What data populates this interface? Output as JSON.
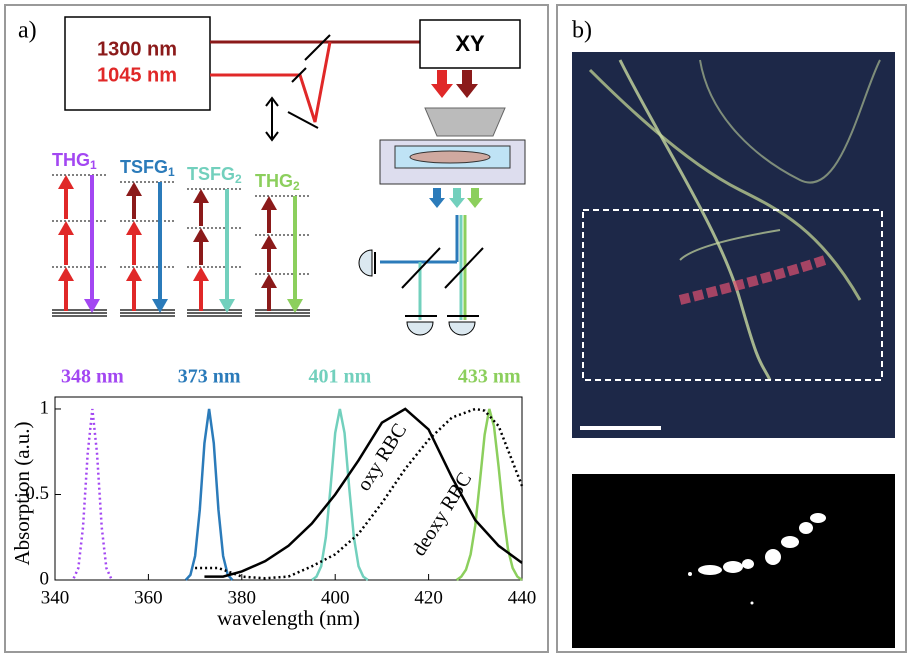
{
  "panel_labels": [
    "a)",
    "b)"
  ],
  "lasers": [
    "1300 nm",
    "1045 nm"
  ],
  "stage_label": "XY",
  "processes": [
    {
      "name": "THG",
      "sub": "1"
    },
    {
      "name": "TSFG",
      "sub": "1"
    },
    {
      "name": "TSFG",
      "sub": "2"
    },
    {
      "name": "THG",
      "sub": "2"
    }
  ],
  "chart_data": {
    "type": "line",
    "xlabel": "wavelength (nm)",
    "ylabel": "Absorption (a.u.)",
    "xlim": [
      340,
      440
    ],
    "ylim": [
      0,
      1.07
    ],
    "xticks": [
      340,
      360,
      380,
      400,
      420,
      440
    ],
    "yticks": [
      0,
      0.5,
      1
    ],
    "series": [
      {
        "name": "348 nm",
        "color": "#a347f2",
        "dashed": true,
        "x": [
          344,
          345,
          346,
          347,
          348,
          349,
          350,
          351,
          352
        ],
        "values": [
          0.01,
          0.07,
          0.31,
          0.74,
          1,
          0.74,
          0.31,
          0.07,
          0.01
        ]
      },
      {
        "name": "373 nm",
        "color": "#2b7bba",
        "dashed": false,
        "x": [
          368,
          369,
          370,
          371,
          372,
          373,
          374,
          375,
          376,
          377,
          378
        ],
        "values": [
          0,
          0.03,
          0.14,
          0.41,
          0.8,
          1,
          0.8,
          0.41,
          0.14,
          0.03,
          0
        ]
      },
      {
        "name": "401 nm",
        "color": "#72d0bd",
        "dashed": false,
        "x": [
          395,
          396,
          397,
          398,
          399,
          400,
          401,
          402,
          403,
          404,
          405,
          406,
          407
        ],
        "values": [
          0,
          0.02,
          0.08,
          0.25,
          0.54,
          0.86,
          1,
          0.86,
          0.54,
          0.25,
          0.08,
          0.02,
          0
        ]
      },
      {
        "name": "433 nm",
        "color": "#8ccf5d",
        "dashed": false,
        "x": [
          426,
          427,
          428,
          429,
          430,
          431,
          432,
          433,
          434,
          435,
          436,
          437,
          438,
          439,
          440
        ],
        "values": [
          0,
          0.02,
          0.06,
          0.15,
          0.32,
          0.58,
          0.85,
          1,
          0.9,
          0.66,
          0.39,
          0.18,
          0.07,
          0.02,
          0
        ]
      },
      {
        "name": "oxy RBC",
        "color": "#000000",
        "dashed": false,
        "x": [
          372,
          376,
          380,
          385,
          390,
          395,
          400,
          405,
          410,
          415,
          420,
          425,
          430,
          435,
          440
        ],
        "values": [
          0.02,
          0.02,
          0.05,
          0.11,
          0.2,
          0.33,
          0.5,
          0.7,
          0.92,
          1,
          0.88,
          0.6,
          0.35,
          0.2,
          0.1
        ]
      },
      {
        "name": "deoxy RBC",
        "color": "#000000",
        "dashed": true,
        "x": [
          370,
          375,
          380,
          385,
          390,
          395,
          400,
          405,
          410,
          415,
          420,
          425,
          430,
          432,
          435,
          440
        ],
        "values": [
          0.07,
          0.07,
          0.02,
          0.01,
          0.02,
          0.08,
          0.15,
          0.27,
          0.45,
          0.65,
          0.82,
          0.95,
          1,
          0.99,
          0.9,
          0.55
        ]
      }
    ]
  }
}
